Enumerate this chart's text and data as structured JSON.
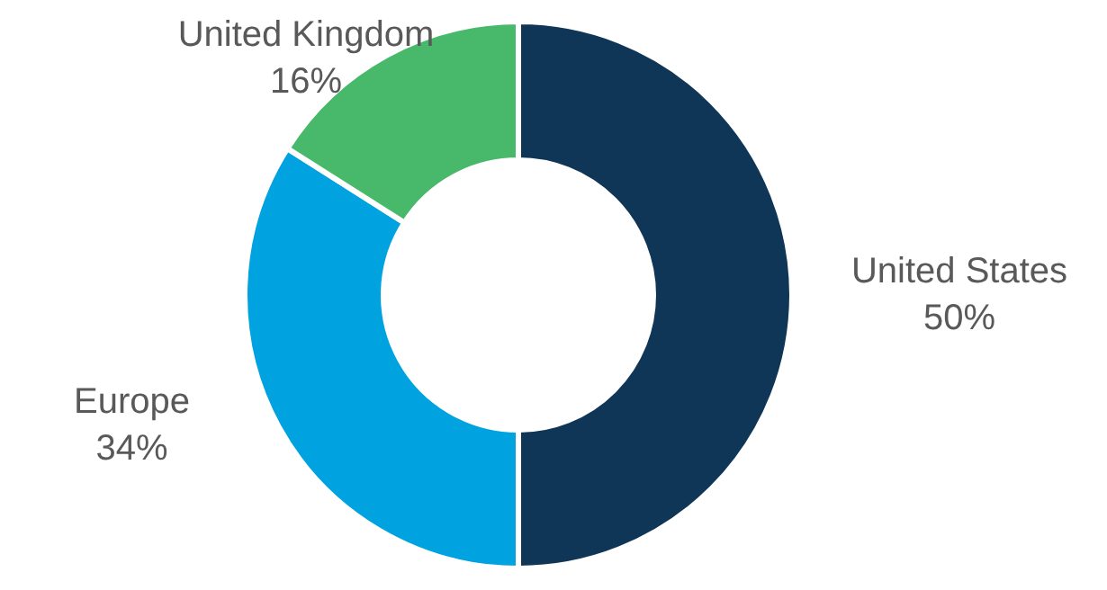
{
  "chart_data": {
    "type": "donut",
    "categories": [
      "United States",
      "Europe",
      "United Kingdom"
    ],
    "values": [
      50,
      34,
      16
    ],
    "colors": [
      "#0f3557",
      "#00a3e0",
      "#48b96a"
    ],
    "value_labels": [
      "50%",
      "34%",
      "16%"
    ]
  }
}
